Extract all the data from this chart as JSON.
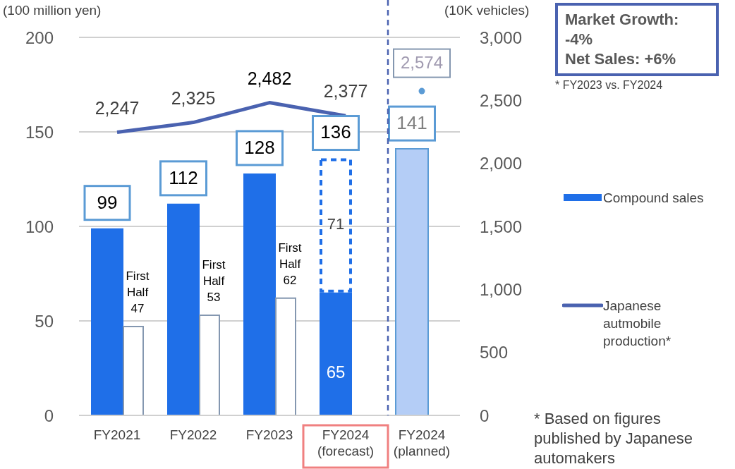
{
  "chart_data": {
    "type": "bar",
    "categories": [
      "FY2021",
      "FY2022",
      "FY2023",
      "FY2024 (forecast)",
      "FY2024 (planned)"
    ],
    "series": [
      {
        "name": "Compound sales",
        "color": "#1f6fe8",
        "colors": [
          "#1f6fe8",
          "#1f6fe8",
          "#1f6fe8",
          "#1f6fe8",
          "#b4cdf6"
        ],
        "values": [
          99,
          112,
          128,
          65,
          141
        ],
        "value_labels": [
          "99",
          "112",
          "128",
          "65",
          "141"
        ]
      },
      {
        "color": "#1f6fe8",
        "line_style": "dashed",
        "values": [
          null,
          null,
          null,
          71,
          null
        ],
        "base": [
          null,
          null,
          null,
          65,
          null
        ],
        "value_labels": [
          null,
          null,
          null,
          "71",
          null
        ]
      },
      {
        "color": "#ffffff",
        "values": [
          47,
          53,
          62,
          null,
          null
        ],
        "value_labels": [
          "First Half 47",
          "First Half 53",
          "First Half 62",
          null,
          null
        ]
      },
      {
        "name": "Japanese autmobile production*",
        "type": "line",
        "axis": "y2",
        "color": "#4a62b0",
        "marker": "none",
        "values": [
          2247,
          2325,
          2482,
          2377,
          null
        ],
        "value_labels": [
          "2,247",
          "2,325",
          "2,482",
          "2,377",
          null
        ]
      },
      {
        "type": "scatter",
        "axis": "y2",
        "color": "#5b9bd5",
        "marker": "circle",
        "values": [
          null,
          null,
          null,
          null,
          2574
        ],
        "value_labels": [
          null,
          null,
          null,
          null,
          "2,574"
        ]
      }
    ],
    "ylabel": "(100 million yen)",
    "y2label": "(10K vehicles)",
    "ylim": [
      0,
      200
    ],
    "yticks": [
      0,
      50,
      100,
      150,
      200
    ],
    "y2lim": [
      0,
      3000
    ],
    "y2ticks": [
      0,
      500,
      {
        "value": 1000,
        "label": "1,000"
      },
      {
        "value": 1500,
        "label": "1,500"
      },
      {
        "value": 2000,
        "label": "2,000"
      },
      {
        "value": 2500,
        "label": "2,500"
      },
      {
        "value": 3000,
        "label": "3,000"
      }
    ],
    "grid": "y",
    "legend": "right",
    "ref_lines": [
      {
        "axis": "x",
        "value": "FY2024 (planned)",
        "color": "#4a62b0",
        "line_style": "dashed"
      }
    ],
    "annotations": [
      "Market Growth: -4%",
      "Net Sales: +6%",
      "* FY2023 vs. FY2024",
      "* Based on figures published by Japanese automakers",
      {
        "text": "136",
        "x": "FY2024 (forecast)",
        "y": 136
      }
    ]
  }
}
